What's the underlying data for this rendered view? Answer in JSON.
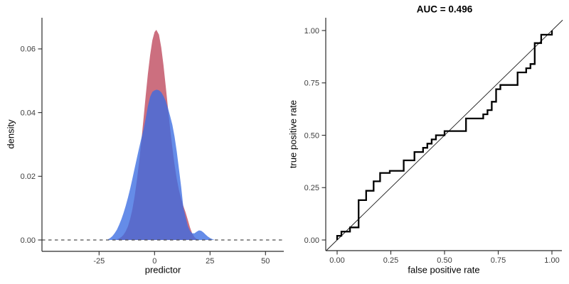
{
  "figure": {
    "left": {
      "xlabel": "predictor",
      "ylabel": "density",
      "xtick_labels": [
        "-25",
        "0",
        "25",
        "50"
      ],
      "ytick_labels": [
        "0.00",
        "0.02",
        "0.04",
        "0.06"
      ]
    },
    "right": {
      "title": "AUC = 0.496",
      "xlabel": "false positive rate",
      "ylabel": "true positive rate",
      "xtick_labels": [
        "0.00",
        "0.25",
        "0.50",
        "0.75",
        "1.00"
      ],
      "ytick_labels": [
        "0.00",
        "0.25",
        "0.50",
        "0.75",
        "1.00"
      ]
    }
  },
  "colors": {
    "density_red_fill": "#CC6F7F",
    "density_blue_fill": "rgba(58,108,226,0.78)",
    "roc_line": "#000000",
    "reference_line": "#1a1a1a",
    "axis_line": "#2b2b2b",
    "zero_line_dashed": "#4d4d4d",
    "tick_text": "#3d3d3d"
  },
  "chart_data": [
    {
      "type": "area",
      "title": "",
      "xlabel": "predictor",
      "ylabel": "density",
      "xticks": [
        -25,
        0,
        25,
        50
      ],
      "yticks": [
        0,
        0.02,
        0.04,
        0.06
      ],
      "xlim": [
        -50.7,
        58.2
      ],
      "ylim": [
        0,
        0.0702
      ],
      "grid": false,
      "baseline": {
        "y": 0,
        "style": "dashed"
      },
      "series": [
        {
          "name": "density-red",
          "color": "#CC6F7F",
          "x": [
            -17,
            -16,
            -15,
            -14,
            -13,
            -12,
            -11,
            -10,
            -9,
            -8,
            -7,
            -6,
            -5,
            -4,
            -3,
            -2,
            -1,
            0,
            0.8,
            2,
            3,
            4,
            5,
            6,
            7,
            8,
            9,
            10,
            11,
            12,
            13,
            14,
            15,
            16,
            17,
            18,
            19,
            20
          ],
          "density": [
            0.0002,
            0.0005,
            0.0009,
            0.0016,
            0.0027,
            0.0043,
            0.0066,
            0.0096,
            0.0136,
            0.0185,
            0.0243,
            0.0308,
            0.0379,
            0.0452,
            0.0521,
            0.0581,
            0.0627,
            0.0653,
            0.066,
            0.0645,
            0.0605,
            0.055,
            0.0485,
            0.0418,
            0.0352,
            0.0291,
            0.0237,
            0.0192,
            0.0157,
            0.0129,
            0.0106,
            0.0086,
            0.0063,
            0.0039,
            0.002,
            0.0009,
            0.0003,
            0
          ]
        },
        {
          "name": "density-blue",
          "color": "rgba(58,108,226,0.78)",
          "x": [
            -21,
            -20,
            -19,
            -18,
            -17,
            -16,
            -15,
            -14,
            -13,
            -12,
            -11,
            -10,
            -9,
            -8,
            -7,
            -6,
            -5,
            -4,
            -3,
            -2,
            -1,
            0,
            1,
            2,
            3,
            4,
            5,
            6,
            7,
            8,
            9,
            10,
            11,
            12,
            13,
            14,
            15,
            16,
            17,
            18,
            19,
            20,
            21,
            22,
            23,
            24,
            25,
            26,
            27
          ],
          "density": [
            0.0002,
            0.0006,
            0.0012,
            0.0021,
            0.0032,
            0.0047,
            0.0064,
            0.0084,
            0.0107,
            0.0133,
            0.0161,
            0.0192,
            0.0224,
            0.0256,
            0.0288,
            0.0318,
            0.0346,
            0.0381,
            0.042,
            0.045,
            0.0465,
            0.047,
            0.0472,
            0.047,
            0.0464,
            0.0452,
            0.0437,
            0.0415,
            0.039,
            0.0362,
            0.0325,
            0.0278,
            0.0223,
            0.0167,
            0.01,
            0.0072,
            0.0044,
            0.0028,
            0.0021,
            0.0021,
            0.0026,
            0.003,
            0.0029,
            0.0024,
            0.0017,
            0.0011,
            0.0006,
            0.0003,
            0
          ]
        }
      ]
    },
    {
      "type": "line",
      "title": "AUC = 0.496",
      "auc": 0.496,
      "xlabel": "false positive rate",
      "ylabel": "true positive rate",
      "xticks": [
        0,
        0.25,
        0.5,
        0.75,
        1
      ],
      "yticks": [
        0,
        0.25,
        0.5,
        0.75,
        1
      ],
      "xlim": [
        -0.05,
        1.05
      ],
      "ylim": [
        -0.05,
        1.05
      ],
      "grid": false,
      "reference_line": {
        "from": [
          -0.05,
          -0.05
        ],
        "to": [
          1.05,
          1.05
        ]
      },
      "roc_points": [
        [
          0,
          0
        ],
        [
          0,
          0.02
        ],
        [
          0.02,
          0.02
        ],
        [
          0.02,
          0.04
        ],
        [
          0.06,
          0.04
        ],
        [
          0.06,
          0.06
        ],
        [
          0.1,
          0.06
        ],
        [
          0.1,
          0.19
        ],
        [
          0.135,
          0.19
        ],
        [
          0.135,
          0.235
        ],
        [
          0.17,
          0.235
        ],
        [
          0.17,
          0.28
        ],
        [
          0.2,
          0.28
        ],
        [
          0.2,
          0.32
        ],
        [
          0.245,
          0.32
        ],
        [
          0.245,
          0.33
        ],
        [
          0.31,
          0.33
        ],
        [
          0.31,
          0.38
        ],
        [
          0.36,
          0.38
        ],
        [
          0.36,
          0.42
        ],
        [
          0.4,
          0.42
        ],
        [
          0.4,
          0.44
        ],
        [
          0.42,
          0.44
        ],
        [
          0.42,
          0.46
        ],
        [
          0.44,
          0.46
        ],
        [
          0.44,
          0.48
        ],
        [
          0.46,
          0.48
        ],
        [
          0.46,
          0.5
        ],
        [
          0.5,
          0.5
        ],
        [
          0.5,
          0.52
        ],
        [
          0.6,
          0.52
        ],
        [
          0.6,
          0.58
        ],
        [
          0.68,
          0.58
        ],
        [
          0.68,
          0.6
        ],
        [
          0.7,
          0.6
        ],
        [
          0.7,
          0.62
        ],
        [
          0.72,
          0.62
        ],
        [
          0.72,
          0.66
        ],
        [
          0.74,
          0.66
        ],
        [
          0.74,
          0.72
        ],
        [
          0.76,
          0.72
        ],
        [
          0.76,
          0.74
        ],
        [
          0.84,
          0.74
        ],
        [
          0.84,
          0.8
        ],
        [
          0.88,
          0.8
        ],
        [
          0.88,
          0.82
        ],
        [
          0.9,
          0.82
        ],
        [
          0.9,
          0.84
        ],
        [
          0.92,
          0.84
        ],
        [
          0.92,
          0.94
        ],
        [
          0.95,
          0.94
        ],
        [
          0.95,
          0.98
        ],
        [
          1.0,
          0.98
        ],
        [
          1.0,
          1.0
        ]
      ]
    }
  ]
}
